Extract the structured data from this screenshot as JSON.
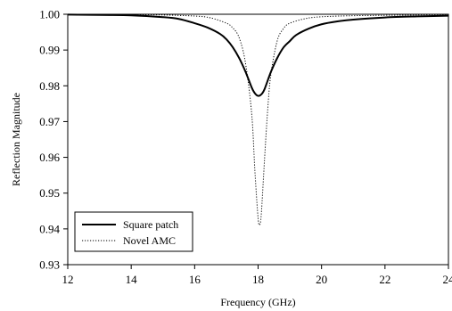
{
  "chart_data": {
    "type": "line",
    "title": "",
    "xlabel": "Frequency (GHz)",
    "ylabel": "Reflection Magnitude",
    "xlim": [
      12,
      24
    ],
    "ylim": [
      0.93,
      1.0
    ],
    "xticks": [
      12,
      14,
      16,
      18,
      20,
      22,
      24
    ],
    "yticks": [
      0.93,
      0.94,
      0.95,
      0.96,
      0.97,
      0.98,
      0.99,
      1.0
    ],
    "xtick_labels": [
      "12",
      "14",
      "16",
      "18",
      "20",
      "22",
      "24"
    ],
    "ytick_labels": [
      "0.93",
      "0.94",
      "0.95",
      "0.96",
      "0.97",
      "0.98",
      "0.99",
      "1.00"
    ],
    "grid": false,
    "legend_position": "bottom-left",
    "series": [
      {
        "name": "Square patch",
        "style": "solid",
        "color": "#000000",
        "x": [
          12,
          13,
          14,
          15,
          15.5,
          16,
          16.4,
          16.8,
          17.0,
          17.2,
          17.4,
          17.6,
          17.8,
          17.9,
          18.0,
          18.1,
          18.2,
          18.4,
          18.6,
          18.8,
          19.0,
          19.2,
          19.6,
          20,
          20.5,
          21,
          22,
          23,
          24
        ],
        "y": [
          0.9999,
          0.9998,
          0.9997,
          0.9992,
          0.9987,
          0.9975,
          0.9963,
          0.9945,
          0.993,
          0.9908,
          0.9878,
          0.984,
          0.9795,
          0.9779,
          0.9772,
          0.9776,
          0.979,
          0.9838,
          0.9877,
          0.9907,
          0.9925,
          0.9942,
          0.996,
          0.9972,
          0.998,
          0.9985,
          0.9991,
          0.9994,
          0.9996
        ]
      },
      {
        "name": "Novel AMC",
        "style": "dotted",
        "color": "#000000",
        "x": [
          12,
          14,
          15,
          16,
          16.5,
          17.0,
          17.2,
          17.4,
          17.6,
          17.8,
          17.9,
          18.0,
          18.05,
          18.1,
          18.2,
          18.3,
          18.4,
          18.6,
          18.8,
          19.0,
          19.5,
          20,
          21,
          22,
          23,
          24
        ],
        "y": [
          0.9999,
          0.9999,
          0.9998,
          0.9995,
          0.999,
          0.9975,
          0.9962,
          0.9935,
          0.9865,
          0.972,
          0.956,
          0.943,
          0.9412,
          0.944,
          0.959,
          0.973,
          0.983,
          0.9925,
          0.996,
          0.9975,
          0.9988,
          0.9993,
          0.9996,
          0.9997,
          0.9998,
          0.9999
        ]
      }
    ]
  }
}
